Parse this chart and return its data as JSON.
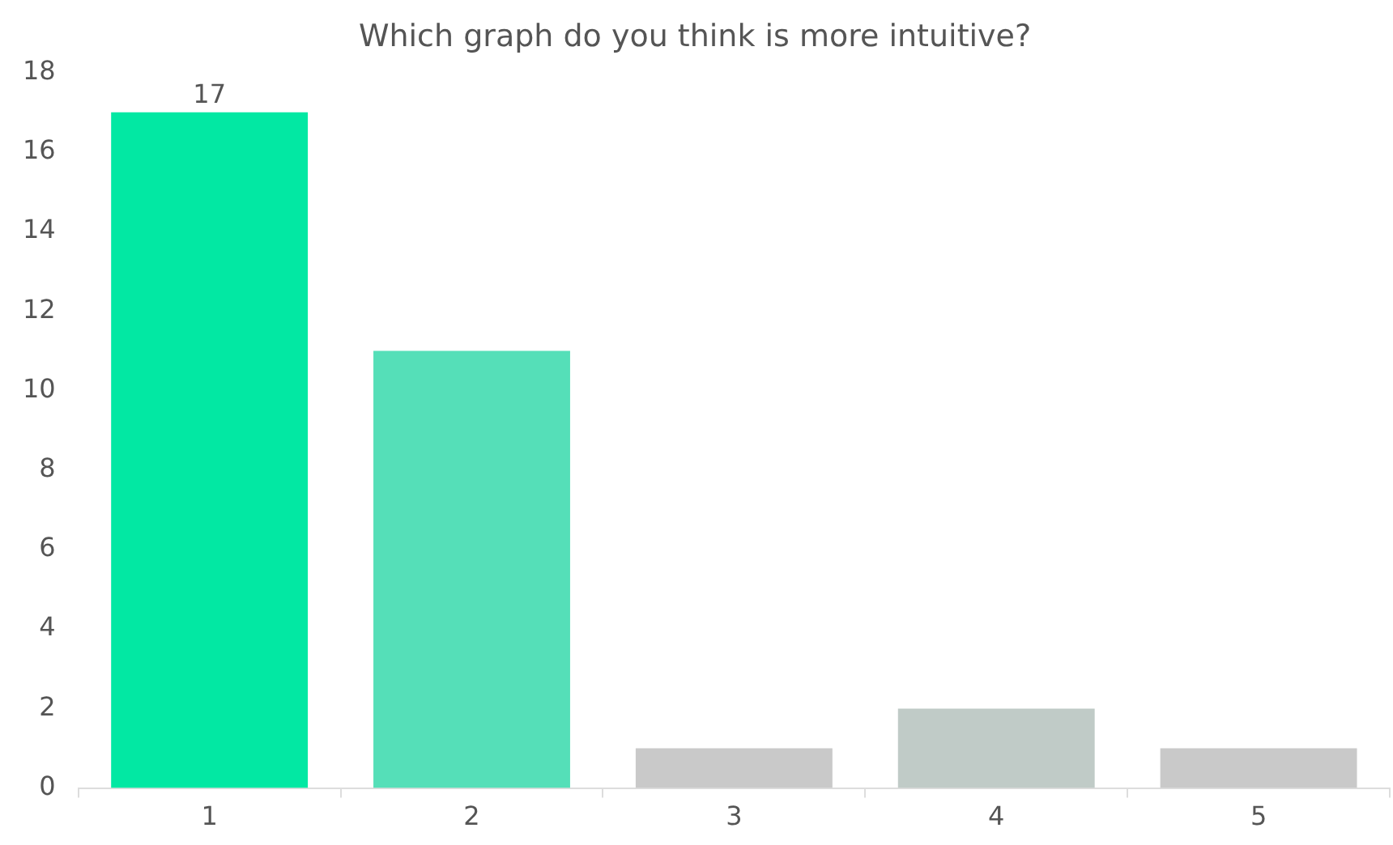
{
  "chart_data": {
    "type": "bar",
    "title": "Which graph do you think is more intuitive?",
    "categories": [
      "1",
      "2",
      "3",
      "4",
      "5"
    ],
    "values": [
      17,
      11,
      1,
      2,
      1
    ],
    "value_labels": [
      "17",
      null,
      null,
      null,
      null
    ],
    "colors": [
      "#02e8a3",
      "#55dfb8",
      "#c9c9c9",
      "#c0cbc7",
      "#c9c9c9"
    ],
    "ylim": [
      0,
      18
    ],
    "yticks": [
      0,
      2,
      4,
      6,
      8,
      10,
      12,
      14,
      16,
      18
    ],
    "grid": false,
    "legend": false
  }
}
